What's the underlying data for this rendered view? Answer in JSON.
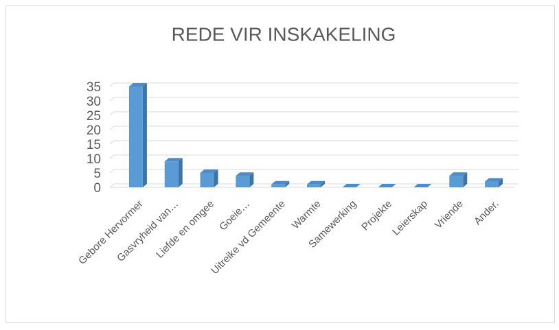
{
  "chart_data": {
    "type": "bar3d",
    "title": "REDE VIR INSKAKELING",
    "categories": [
      "Gebore Hervormer",
      "Gasvryheid van…",
      "Liefde en omgee",
      "Goeie…",
      "Uitreike vd Gemeente",
      "Warmte",
      "Samewerking",
      "Projekte",
      "Leierskap",
      "Vriende",
      "Ander."
    ],
    "values": [
      35,
      9,
      5,
      4,
      1,
      1,
      0,
      0,
      0,
      4,
      2
    ],
    "color": "#5b9bd5",
    "ylim": [
      0,
      35
    ],
    "yticks": [
      0,
      5,
      10,
      15,
      20,
      25,
      30,
      35
    ],
    "grid": true
  }
}
